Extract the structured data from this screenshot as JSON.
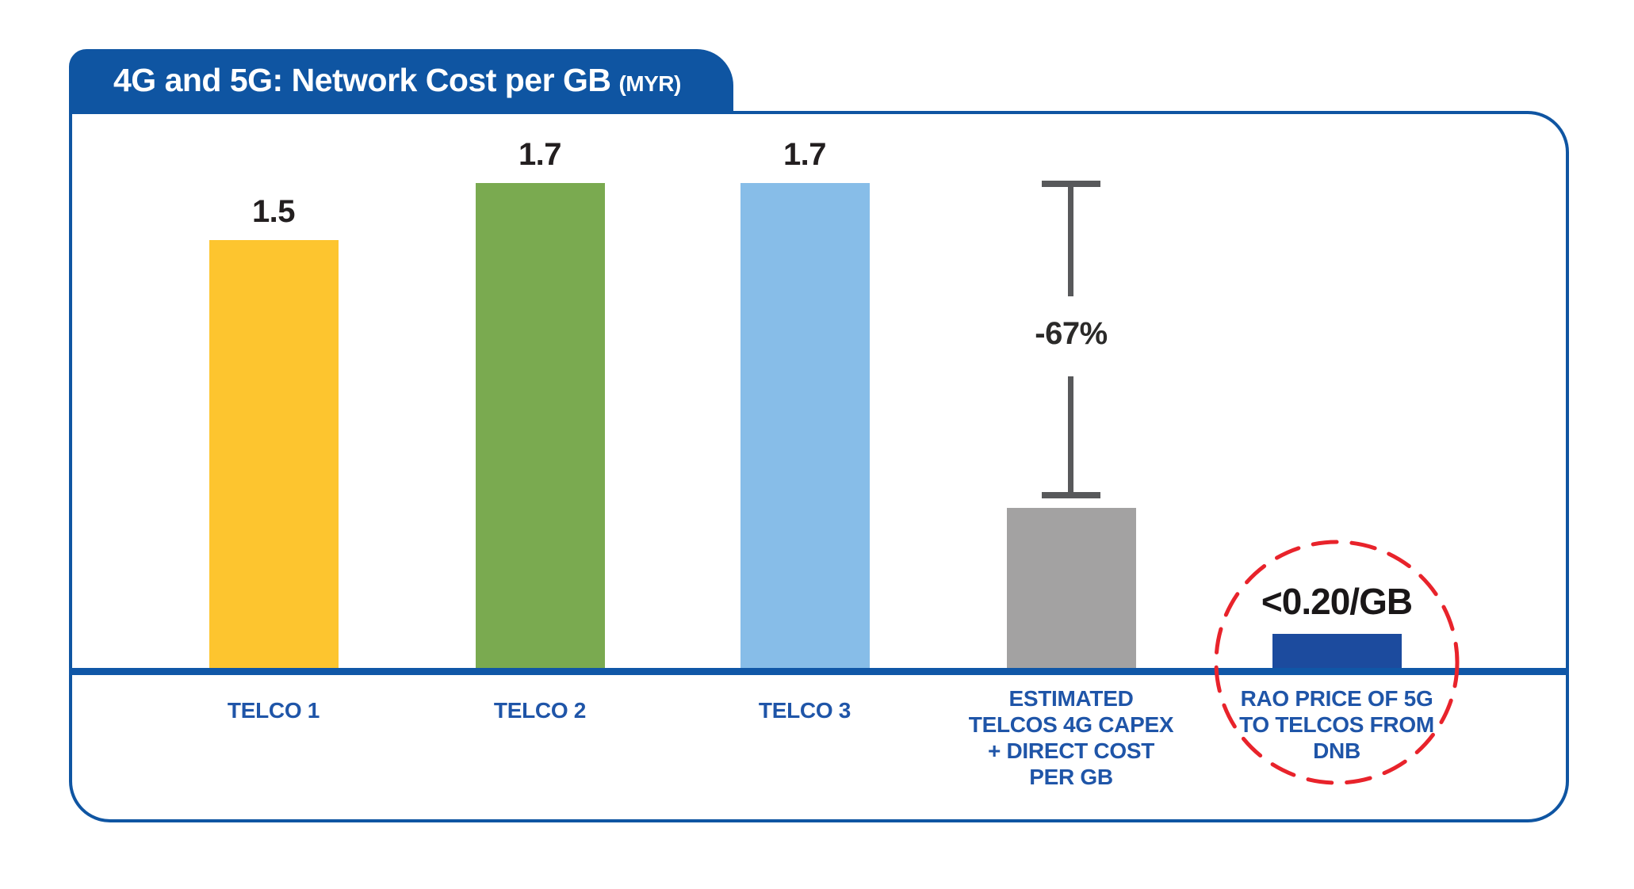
{
  "title": {
    "main": "4G and 5G: Network Cost per GB",
    "unit": "(MYR)"
  },
  "chart_data": {
    "type": "bar",
    "title": "4G and 5G: Network Cost per GB (MYR)",
    "xlabel": "",
    "ylabel": "Network cost per GB (MYR)",
    "ylim": [
      0,
      1.9
    ],
    "grid": false,
    "legend": false,
    "categories": [
      "TELCO 1",
      "TELCO 2",
      "TELCO 3",
      "ESTIMATED TELCOS 4G CAPEX + DIRECT COST PER GB",
      "RAO PRICE OF 5G TO TELCOS FROM DNB"
    ],
    "values": [
      1.5,
      1.7,
      1.7,
      0.56,
      0.12
    ],
    "bars": [
      {
        "category_lines": [
          "TELCO 1"
        ],
        "value": 1.5,
        "value_label": "1.5",
        "color": "#FDC52F"
      },
      {
        "category_lines": [
          "TELCO 2"
        ],
        "value": 1.7,
        "value_label": "1.7",
        "color": "#7AAA50"
      },
      {
        "category_lines": [
          "TELCO 3"
        ],
        "value": 1.7,
        "value_label": "1.7",
        "color": "#87BDE8"
      },
      {
        "category_lines": [
          "ESTIMATED",
          "TELCOS 4G CAPEX",
          "+ DIRECT COST",
          "PER GB"
        ],
        "value": 0.56,
        "value_label": "",
        "color": "#A3A2A2",
        "note": "no printed value; height implies ~0.56 (-67% vs 1.7)"
      },
      {
        "category_lines": [
          "RAO PRICE OF 5G",
          "TO TELCOS FROM",
          "DNB"
        ],
        "value": 0.12,
        "value_label": "<0.20/GB",
        "color": "#1C4B9E",
        "highlighted": true,
        "note": "printed as <0.20/GB"
      }
    ],
    "annotations": [
      {
        "type": "decrease-bracket",
        "text": "-67%",
        "from_value": 1.7,
        "to_value": 0.56,
        "at_category": "ESTIMATED TELCOS 4G CAPEX + DIRECT COST PER GB"
      },
      {
        "type": "dashed-circle-callout",
        "text": "<0.20/GB",
        "at_category": "RAO PRICE OF 5G TO TELCOS FROM DNB"
      }
    ]
  },
  "colors": {
    "brand_blue": "#0F55A2",
    "axis_blue": "#1057A7",
    "label_blue": "#1F55A8",
    "bar_yellow": "#FDC52F",
    "bar_green": "#7AAA50",
    "bar_lightblue": "#87BDE8",
    "bar_gray": "#A3A2A2",
    "bar_navy": "#1C4B9E",
    "bracket_gray": "#58595B",
    "highlight_red": "#E8232B",
    "value_text": "#231F20"
  }
}
